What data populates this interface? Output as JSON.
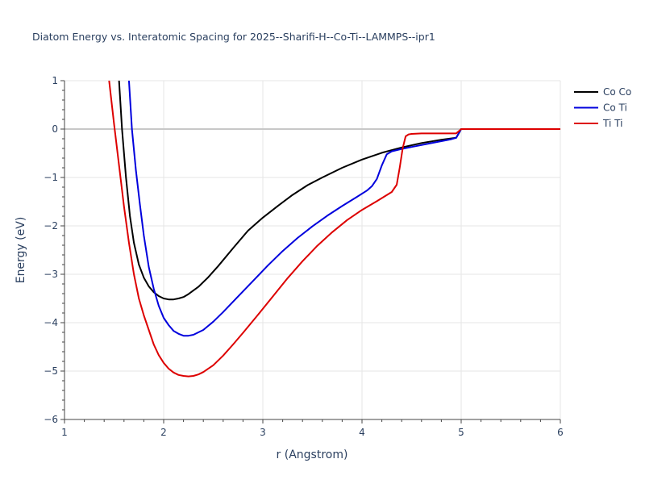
{
  "chart_data": {
    "type": "line",
    "title": "Diatom Energy vs. Interatomic Spacing for 2025--Sharifi-H--Co-Ti--LAMMPS--ipr1",
    "xlabel": "r (Angstrom)",
    "ylabel": "Energy (eV)",
    "xlim": [
      1,
      6
    ],
    "ylim": [
      -6,
      1
    ],
    "x_ticks": [
      1,
      2,
      3,
      4,
      5,
      6
    ],
    "y_ticks": [
      1,
      0,
      -1,
      -2,
      -3,
      -4,
      -5,
      -6
    ],
    "x_tick_labels": [
      "1",
      "2",
      "3",
      "4",
      "5",
      "6"
    ],
    "y_tick_labels": [
      "1",
      "0",
      "−1",
      "−2",
      "−3",
      "−4",
      "−5",
      "−6"
    ],
    "grid": true,
    "legend_position": "top-right",
    "series": [
      {
        "name": "Co Co",
        "color": "#000000",
        "x": [
          1.55,
          1.58,
          1.62,
          1.66,
          1.7,
          1.75,
          1.8,
          1.85,
          1.9,
          1.95,
          2.0,
          2.05,
          2.1,
          2.15,
          2.2,
          2.25,
          2.35,
          2.45,
          2.55,
          2.7,
          2.85,
          3.0,
          3.15,
          3.3,
          3.45,
          3.6,
          3.8,
          4.0,
          4.2,
          4.4,
          4.6,
          4.8,
          4.95,
          5.0,
          5.2,
          5.5,
          6.0
        ],
        "y": [
          1.0,
          0.0,
          -1.0,
          -1.8,
          -2.35,
          -2.8,
          -3.07,
          -3.25,
          -3.37,
          -3.45,
          -3.5,
          -3.52,
          -3.52,
          -3.5,
          -3.47,
          -3.41,
          -3.26,
          -3.06,
          -2.83,
          -2.46,
          -2.1,
          -1.83,
          -1.59,
          -1.36,
          -1.16,
          -1.0,
          -0.8,
          -0.63,
          -0.49,
          -0.38,
          -0.29,
          -0.22,
          -0.18,
          0.0,
          0.0,
          0.0,
          0.0
        ]
      },
      {
        "name": "Co Ti",
        "color": "#0000dd",
        "x": [
          1.65,
          1.68,
          1.72,
          1.76,
          1.8,
          1.85,
          1.9,
          1.95,
          2.0,
          2.05,
          2.1,
          2.15,
          2.2,
          2.25,
          2.3,
          2.35,
          2.4,
          2.5,
          2.6,
          2.75,
          2.9,
          3.05,
          3.2,
          3.35,
          3.5,
          3.65,
          3.8,
          3.95,
          4.05,
          4.1,
          4.15,
          4.2,
          4.25,
          4.3,
          4.4,
          4.5,
          4.6,
          4.7,
          4.8,
          4.9,
          4.95,
          5.0,
          5.2,
          5.5,
          6.0
        ],
        "y": [
          1.0,
          0.0,
          -0.85,
          -1.55,
          -2.2,
          -2.85,
          -3.3,
          -3.65,
          -3.9,
          -4.05,
          -4.17,
          -4.23,
          -4.27,
          -4.27,
          -4.25,
          -4.2,
          -4.15,
          -3.98,
          -3.78,
          -3.46,
          -3.14,
          -2.82,
          -2.52,
          -2.25,
          -2.01,
          -1.79,
          -1.59,
          -1.4,
          -1.27,
          -1.18,
          -1.03,
          -0.75,
          -0.52,
          -0.46,
          -0.41,
          -0.37,
          -0.33,
          -0.29,
          -0.25,
          -0.21,
          -0.18,
          0.0,
          0.0,
          0.0,
          0.0
        ]
      },
      {
        "name": "Ti Ti",
        "color": "#dd0000",
        "x": [
          1.45,
          1.5,
          1.55,
          1.6,
          1.65,
          1.7,
          1.75,
          1.8,
          1.85,
          1.9,
          1.95,
          2.0,
          2.05,
          2.1,
          2.15,
          2.2,
          2.25,
          2.3,
          2.35,
          2.4,
          2.5,
          2.6,
          2.7,
          2.8,
          2.95,
          3.1,
          3.25,
          3.4,
          3.55,
          3.7,
          3.85,
          4.0,
          4.15,
          4.3,
          4.35,
          4.38,
          4.41,
          4.44,
          4.47,
          4.5,
          4.6,
          4.8,
          4.95,
          5.0,
          5.2,
          5.5,
          6.0
        ],
        "y": [
          1.0,
          0.1,
          -0.75,
          -1.6,
          -2.35,
          -3.0,
          -3.5,
          -3.85,
          -4.15,
          -4.45,
          -4.67,
          -4.83,
          -4.95,
          -5.03,
          -5.08,
          -5.1,
          -5.11,
          -5.1,
          -5.07,
          -5.02,
          -4.88,
          -4.68,
          -4.45,
          -4.21,
          -3.84,
          -3.46,
          -3.08,
          -2.73,
          -2.41,
          -2.13,
          -1.88,
          -1.67,
          -1.49,
          -1.3,
          -1.15,
          -0.8,
          -0.4,
          -0.15,
          -0.11,
          -0.1,
          -0.09,
          -0.09,
          -0.09,
          0.0,
          0.0,
          0.0,
          0.0
        ]
      }
    ]
  }
}
